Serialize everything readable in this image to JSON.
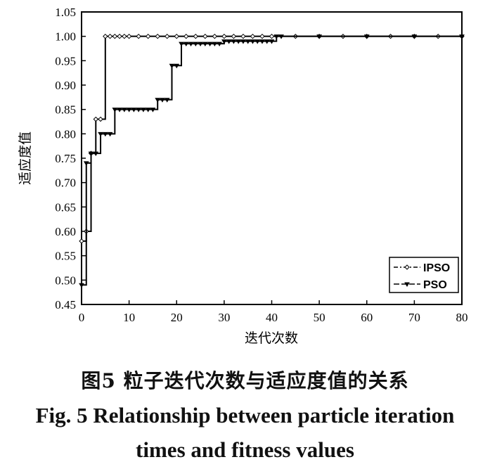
{
  "chart_data": {
    "type": "line",
    "title": "",
    "xlabel": "迭代次数",
    "ylabel": "适应度值",
    "xlim": [
      0,
      80
    ],
    "ylim": [
      0.45,
      1.05
    ],
    "xticks": [
      0,
      10,
      20,
      30,
      40,
      50,
      60,
      70,
      80
    ],
    "yticks": [
      0.45,
      0.5,
      0.55,
      0.6,
      0.65,
      0.7,
      0.75,
      0.8,
      0.85,
      0.9,
      0.95,
      1.0,
      1.05
    ],
    "xtick_labels": [
      "0",
      "10",
      "20",
      "30",
      "40",
      "50",
      "60",
      "70",
      "80"
    ],
    "ytick_labels": [
      "0.45",
      "0.50",
      "0.55",
      "0.60",
      "0.65",
      "0.70",
      "0.75",
      "0.80",
      "0.85",
      "0.90",
      "0.95",
      "1.00",
      "1.05"
    ],
    "grid": false,
    "legend": "bottom-right",
    "series": [
      {
        "name": "IPSO",
        "marker": "diamond",
        "color": "#000000",
        "x": [
          0,
          1,
          2,
          3,
          4,
          5,
          6,
          7,
          8,
          9,
          10,
          12,
          14,
          16,
          18,
          20,
          22,
          24,
          26,
          28,
          30,
          32,
          34,
          36,
          38,
          40,
          45,
          50,
          55,
          60,
          65,
          70,
          75,
          80
        ],
        "y": [
          0.58,
          0.6,
          0.76,
          0.83,
          0.83,
          1.0,
          1.0,
          1.0,
          1.0,
          1.0,
          1.0,
          1.0,
          1.0,
          1.0,
          1.0,
          1.0,
          1.0,
          1.0,
          1.0,
          1.0,
          1.0,
          1.0,
          1.0,
          1.0,
          1.0,
          1.0,
          1.0,
          1.0,
          1.0,
          1.0,
          1.0,
          1.0,
          1.0,
          1.0
        ]
      },
      {
        "name": "PSO",
        "marker": "triangle-down",
        "color": "#000000",
        "x": [
          0,
          1,
          2,
          3,
          4,
          5,
          6,
          7,
          8,
          9,
          10,
          11,
          12,
          13,
          14,
          15,
          16,
          17,
          18,
          19,
          20,
          21,
          22,
          23,
          24,
          25,
          26,
          27,
          28,
          29,
          30,
          31,
          32,
          33,
          34,
          35,
          36,
          37,
          38,
          39,
          40,
          41,
          42,
          50,
          60,
          70,
          80
        ],
        "y": [
          0.49,
          0.74,
          0.76,
          0.76,
          0.8,
          0.8,
          0.8,
          0.85,
          0.85,
          0.85,
          0.85,
          0.85,
          0.85,
          0.85,
          0.85,
          0.85,
          0.87,
          0.87,
          0.87,
          0.94,
          0.94,
          0.985,
          0.985,
          0.985,
          0.985,
          0.985,
          0.985,
          0.985,
          0.985,
          0.985,
          0.99,
          0.99,
          0.99,
          0.99,
          0.99,
          0.99,
          0.99,
          0.99,
          0.99,
          0.99,
          0.99,
          1.0,
          1.0,
          1.0,
          1.0,
          1.0,
          1.0
        ]
      }
    ]
  },
  "caption": {
    "cn": "图5  粒子迭代次数与适应度值的关系",
    "en_line1": "Fig. 5  Relationship between particle iteration",
    "en_line2": "times and fitness values"
  }
}
